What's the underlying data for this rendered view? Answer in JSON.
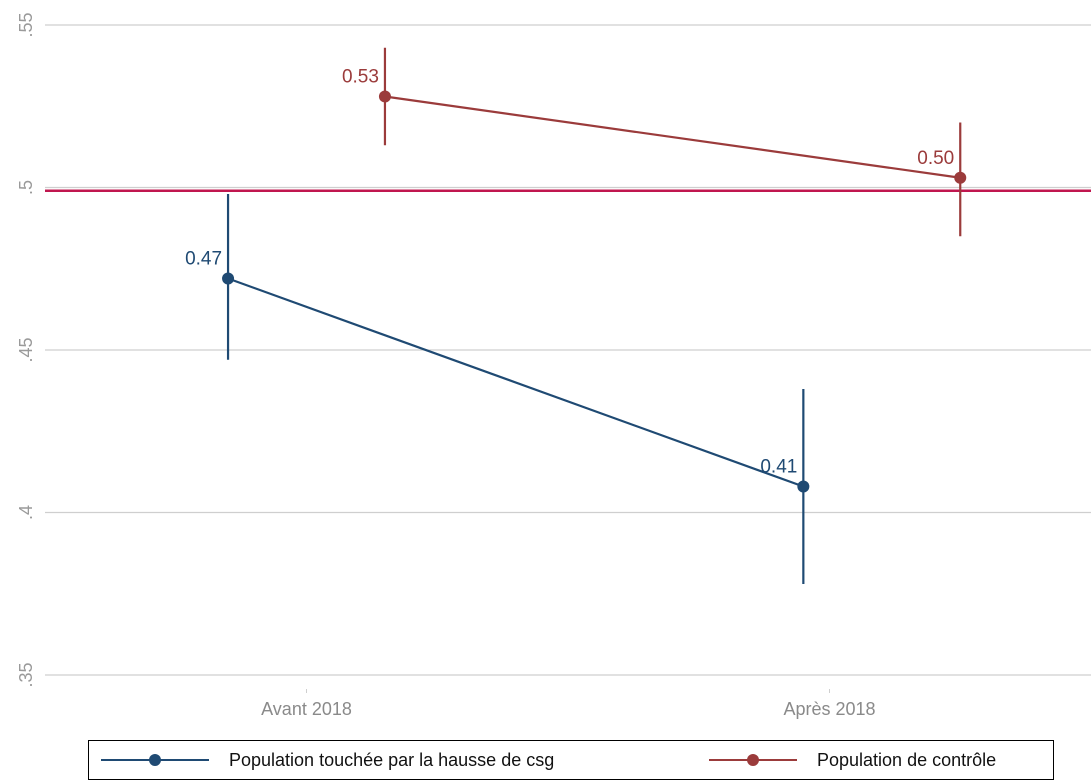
{
  "chart_data": {
    "type": "line",
    "categories": [
      "Avant 2018",
      "Après 2018"
    ],
    "ylim": [
      0.35,
      0.55
    ],
    "yticks": [
      0.35,
      0.4,
      0.45,
      0.5,
      0.55
    ],
    "ytick_labels": [
      ".35",
      ".4",
      ".45",
      ".5",
      ".55"
    ],
    "grid": true,
    "reference_line": {
      "y": 0.499,
      "color": "#c0174f"
    },
    "legend_position": "bottom",
    "series": [
      {
        "name": "Population touchée par la hausse de csg",
        "color": "#1f4a73",
        "x": [
          0.175,
          0.725
        ],
        "values": [
          0.472,
          0.408
        ],
        "ci_low": [
          0.447,
          0.378
        ],
        "ci_high": [
          0.498,
          0.438
        ],
        "labels": [
          "0.47",
          "0.41"
        ]
      },
      {
        "name": "Population de contrôle",
        "color": "#9b3b3b",
        "x": [
          0.325,
          0.875
        ],
        "values": [
          0.528,
          0.503
        ],
        "ci_low": [
          0.513,
          0.485
        ],
        "ci_high": [
          0.543,
          0.52
        ],
        "labels": [
          "0.53",
          "0.50"
        ]
      }
    ]
  }
}
